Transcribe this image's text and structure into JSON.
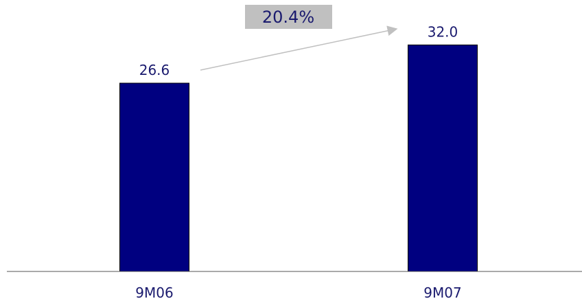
{
  "colors": {
    "bar": "#000080",
    "bar_outline": "#000000",
    "label_text": "#1a1a6e",
    "axis": "#555555",
    "growth_box": "#c0c0c0",
    "growth_arrow": "#c0c0c0"
  },
  "growth_annotation": {
    "text": "20.4%"
  },
  "chart_data": {
    "type": "bar",
    "categories": [
      "9M06",
      "9M07"
    ],
    "values": [
      26.6,
      32.0
    ],
    "value_labels": [
      "26.6",
      "32.0"
    ],
    "title": "",
    "xlabel": "",
    "ylabel": "",
    "ylim": [
      0,
      36
    ],
    "grid": false,
    "legend": "none"
  }
}
